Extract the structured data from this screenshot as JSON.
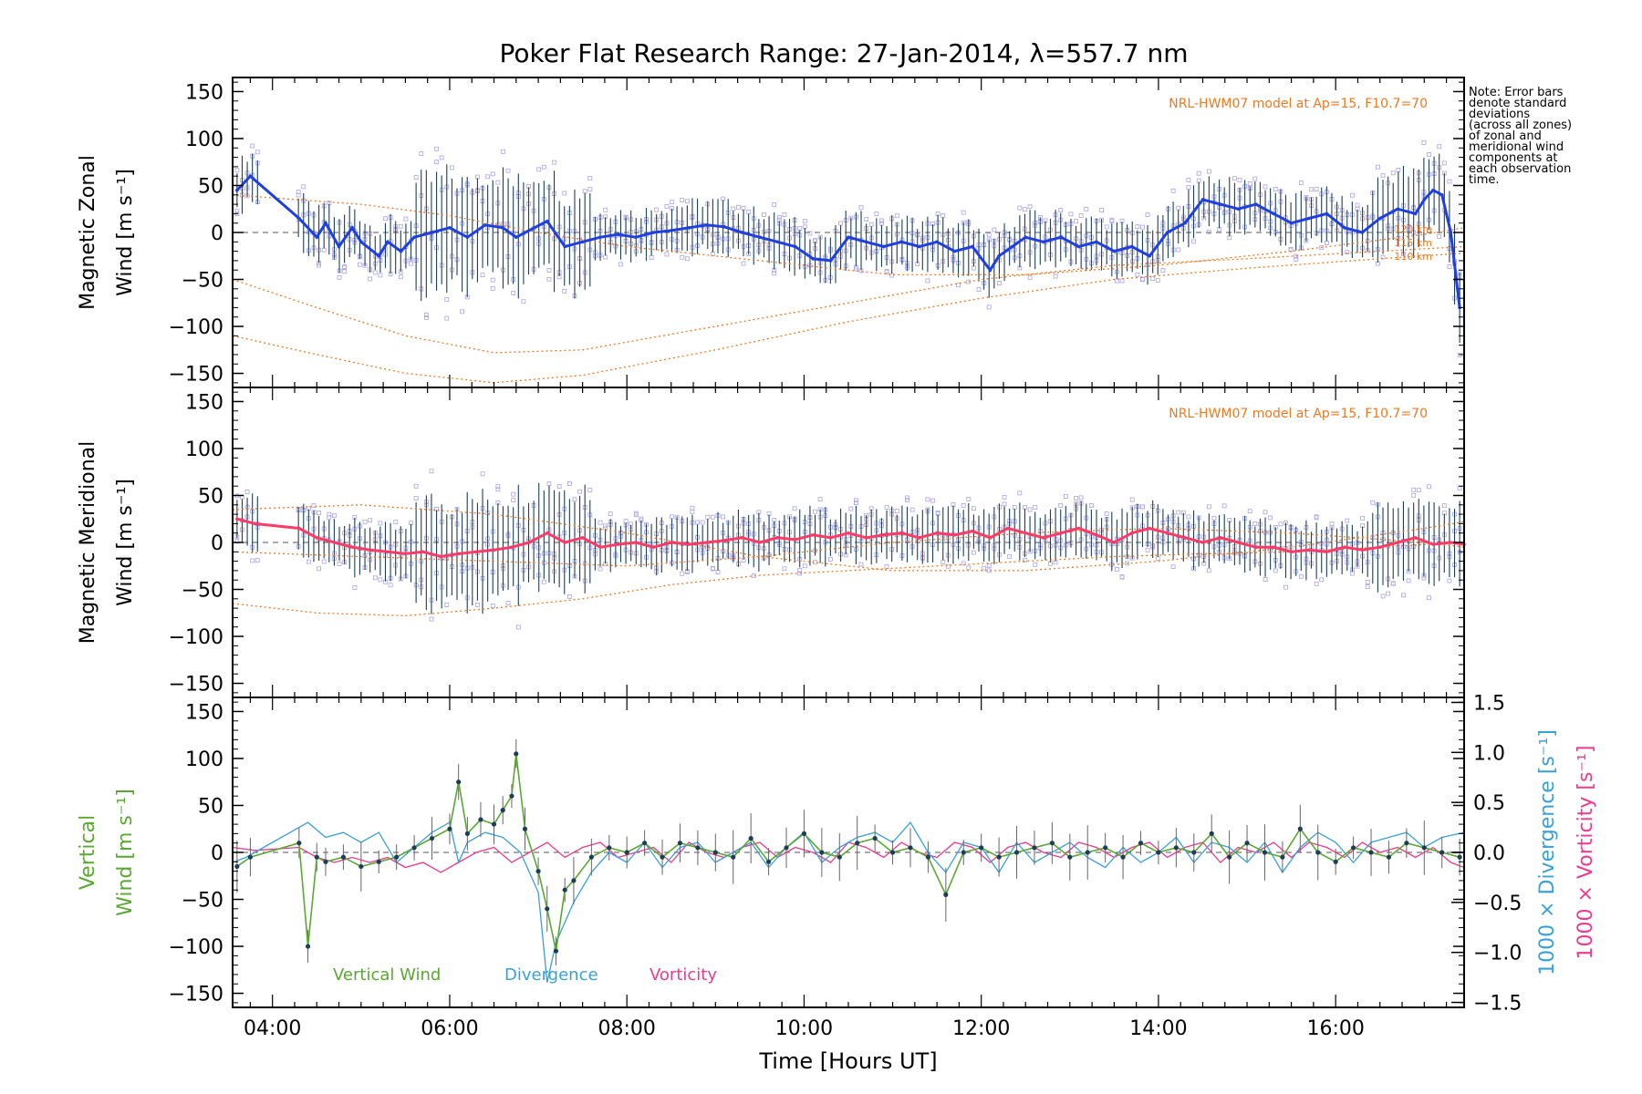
{
  "figure": {
    "title": "Poker Flat Research Range: 27-Jan-2014, λ=557.7 nm",
    "note": "Note: Error bars\ndenote standard\ndeviations\n(across all zones)\nof zonal and\nmeridional wind\ncomponents at\neach observation\ntime.",
    "model_label": "NRL-HWM07 model at Ap=15, F10.7=70",
    "xlabel": "Time [Hours UT]",
    "colors": {
      "zonal_mean": "#1f3fe0",
      "meridional_mean": "#ff3a66",
      "vertical": "#5aa832",
      "divergence": "#3aa0d8",
      "vorticity": "#ee3a8c",
      "model": "#f07820",
      "scatter": "#a9a3e6",
      "errorbar": "#1c3f57"
    }
  },
  "chart_data": [
    {
      "type": "line",
      "panel": "zonal",
      "ylabel_lines": [
        "Magnetic Zonal",
        "Wind [m s⁻¹]"
      ],
      "xlim": [
        3.55,
        17.45
      ],
      "ylim": [
        -165,
        165
      ],
      "yticks": [
        150,
        100,
        50,
        0,
        -50,
        -100,
        -150
      ],
      "xtick_values": [
        4,
        6,
        8,
        10,
        12,
        14,
        16
      ],
      "xtick_labels": [
        "04:00",
        "06:00",
        "08:00",
        "10:00",
        "12:00",
        "14:00",
        "16:00"
      ],
      "model_curves": [
        {
          "name": "model-upper",
          "x": [
            3.55,
            5.0,
            6.0,
            7.0,
            8.0,
            9.5,
            11.0,
            12.5,
            14.0,
            15.5,
            17.0,
            17.45
          ],
          "y": [
            40,
            30,
            18,
            0,
            -15,
            -30,
            -45,
            -45,
            -35,
            -20,
            -2,
            5
          ]
        },
        {
          "name": "model-mid",
          "x": [
            3.55,
            4.5,
            5.5,
            6.5,
            7.5,
            9.0,
            10.5,
            12.0,
            13.5,
            15.0,
            16.5,
            17.45
          ],
          "y": [
            -50,
            -80,
            -110,
            -128,
            -125,
            -100,
            -75,
            -50,
            -35,
            -28,
            -20,
            -15
          ]
        },
        {
          "name": "model-lower",
          "x": [
            3.55,
            4.5,
            5.5,
            6.5,
            7.5,
            9.0,
            10.5,
            12.0,
            13.5,
            15.0,
            16.5,
            17.45
          ],
          "y": [
            -110,
            -130,
            -150,
            -160,
            -152,
            -125,
            -95,
            -70,
            -50,
            -38,
            -28,
            -22
          ]
        }
      ],
      "model_level_labels": [
        "120 km",
        "115 km",
        "110 km"
      ],
      "series": [
        {
          "name": "zonal-mean",
          "x": [
            3.6,
            3.75,
            4.3,
            4.5,
            4.6,
            4.75,
            4.9,
            5.0,
            5.2,
            5.3,
            5.45,
            5.6,
            5.8,
            6.0,
            6.2,
            6.4,
            6.6,
            6.75,
            7.1,
            7.3,
            7.5,
            7.7,
            7.9,
            8.1,
            8.3,
            8.5,
            8.7,
            8.9,
            9.1,
            9.3,
            9.5,
            9.7,
            9.9,
            10.1,
            10.3,
            10.5,
            10.7,
            10.9,
            11.1,
            11.3,
            11.5,
            11.7,
            11.9,
            12.1,
            12.2,
            12.35,
            12.5,
            12.7,
            12.9,
            13.1,
            13.3,
            13.5,
            13.7,
            13.9,
            14.1,
            14.3,
            14.5,
            14.7,
            14.9,
            15.1,
            15.3,
            15.5,
            15.7,
            15.9,
            16.1,
            16.3,
            16.5,
            16.7,
            16.9,
            17.0,
            17.1,
            17.2,
            17.3,
            17.4
          ],
          "y": [
            45,
            60,
            15,
            -5,
            10,
            -15,
            5,
            -10,
            -25,
            -10,
            -20,
            -5,
            0,
            5,
            -5,
            8,
            5,
            -5,
            12,
            -15,
            -10,
            -5,
            -2,
            -5,
            0,
            2,
            5,
            8,
            6,
            0,
            -5,
            -10,
            -15,
            -28,
            -30,
            -5,
            -10,
            -15,
            -10,
            -15,
            -10,
            -20,
            -15,
            -40,
            -25,
            -15,
            -5,
            -10,
            -5,
            -15,
            -10,
            -20,
            -15,
            -25,
            0,
            10,
            35,
            30,
            25,
            30,
            20,
            10,
            15,
            20,
            5,
            0,
            15,
            25,
            20,
            35,
            45,
            40,
            0,
            -80
          ]
        }
      ]
    },
    {
      "type": "line",
      "panel": "meridional",
      "ylabel_lines": [
        "Magnetic Meridional",
        "Wind [m s⁻¹]"
      ],
      "xlim": [
        3.55,
        17.45
      ],
      "ylim": [
        -165,
        165
      ],
      "yticks": [
        150,
        100,
        50,
        0,
        -50,
        -100,
        -150
      ],
      "model_curves": [
        {
          "name": "model-upper",
          "x": [
            3.55,
            5.0,
            6.5,
            8.0,
            9.5,
            11.0,
            12.5,
            14.0,
            15.5,
            17.0,
            17.45
          ],
          "y": [
            35,
            40,
            30,
            10,
            -15,
            -30,
            -30,
            -20,
            -5,
            15,
            22
          ]
        },
        {
          "name": "model-mid",
          "x": [
            3.55,
            5.0,
            6.5,
            8.0,
            9.5,
            11.0,
            12.5,
            14.0,
            15.5,
            17.0,
            17.45
          ],
          "y": [
            -10,
            -15,
            -20,
            -25,
            -15,
            0,
            10,
            15,
            10,
            0,
            -5
          ]
        },
        {
          "name": "model-lower",
          "x": [
            3.55,
            4.5,
            5.5,
            6.5,
            7.5,
            8.5,
            9.5,
            10.5,
            11.5,
            12.5,
            13.5,
            14.5,
            15.5,
            16.5,
            17.45
          ],
          "y": [
            -65,
            -75,
            -78,
            -70,
            -60,
            -45,
            -35,
            -30,
            -25,
            -20,
            -15,
            -12,
            -10,
            -5,
            0
          ]
        }
      ],
      "series": [
        {
          "name": "meridional-mean",
          "x": [
            3.6,
            3.8,
            4.3,
            4.5,
            4.7,
            4.9,
            5.1,
            5.3,
            5.5,
            5.7,
            5.9,
            6.1,
            6.3,
            6.5,
            6.7,
            6.9,
            7.1,
            7.3,
            7.5,
            7.7,
            7.9,
            8.1,
            8.3,
            8.5,
            8.7,
            8.9,
            9.1,
            9.3,
            9.5,
            9.7,
            9.9,
            10.1,
            10.3,
            10.5,
            10.7,
            10.9,
            11.1,
            11.3,
            11.5,
            11.7,
            11.9,
            12.1,
            12.3,
            12.5,
            12.7,
            12.9,
            13.1,
            13.3,
            13.5,
            13.7,
            13.9,
            14.1,
            14.3,
            14.5,
            14.7,
            14.9,
            15.1,
            15.3,
            15.5,
            15.7,
            15.9,
            16.1,
            16.3,
            16.5,
            16.7,
            16.9,
            17.1,
            17.3,
            17.45
          ],
          "y": [
            25,
            20,
            15,
            5,
            0,
            -5,
            -8,
            -10,
            -12,
            -10,
            -15,
            -12,
            -10,
            -8,
            -5,
            0,
            10,
            0,
            5,
            -5,
            -2,
            0,
            -5,
            0,
            -2,
            0,
            2,
            5,
            0,
            5,
            3,
            8,
            5,
            10,
            5,
            8,
            10,
            5,
            10,
            8,
            12,
            5,
            15,
            10,
            5,
            10,
            15,
            8,
            0,
            10,
            15,
            10,
            5,
            0,
            5,
            0,
            -5,
            -5,
            -10,
            -8,
            -10,
            -5,
            -8,
            -5,
            0,
            5,
            -2,
            0,
            -2
          ]
        }
      ]
    },
    {
      "type": "line",
      "panel": "vertical",
      "ylabel_lines": [
        "Vertical",
        "Wind [m s⁻¹]"
      ],
      "y2label_divergence": "1000 × Divergence [s⁻¹]",
      "y2label_vorticity": "1000 × Vorticity [s⁻¹]",
      "xlim": [
        3.55,
        17.45
      ],
      "ylim": [
        -165,
        165
      ],
      "yticks": [
        150,
        100,
        50,
        0,
        -50,
        -100,
        -150
      ],
      "y2lim": [
        -1.55,
        1.55
      ],
      "y2ticks": [
        1.5,
        1.0,
        0.5,
        0.0,
        -0.5,
        -1.0,
        -1.5
      ],
      "y2tick_labels": [
        "1.5",
        "1.0",
        "0.5",
        "0.0",
        "−0.5",
        "−1.0",
        "−1.5"
      ],
      "legend": [
        "Vertical Wind",
        "Divergence",
        "Vorticity"
      ],
      "series": [
        {
          "name": "Vertical Wind",
          "axis": "left",
          "x": [
            3.6,
            3.75,
            4.3,
            4.4,
            4.5,
            4.6,
            4.8,
            5.0,
            5.2,
            5.4,
            5.6,
            5.8,
            6.0,
            6.1,
            6.2,
            6.35,
            6.5,
            6.6,
            6.7,
            6.75,
            6.85,
            7.0,
            7.1,
            7.2,
            7.3,
            7.4,
            7.6,
            7.8,
            8.0,
            8.2,
            8.4,
            8.6,
            8.8,
            9.0,
            9.2,
            9.4,
            9.6,
            9.8,
            10.0,
            10.2,
            10.4,
            10.6,
            10.8,
            11.0,
            11.2,
            11.4,
            11.6,
            11.8,
            12.0,
            12.2,
            12.4,
            12.6,
            12.8,
            13.0,
            13.2,
            13.4,
            13.6,
            13.8,
            14.0,
            14.2,
            14.4,
            14.6,
            14.8,
            15.0,
            15.2,
            15.4,
            15.6,
            15.8,
            16.0,
            16.2,
            16.4,
            16.6,
            16.8,
            17.0,
            17.2,
            17.4
          ],
          "y": [
            -15,
            -5,
            10,
            -100,
            -5,
            -10,
            -5,
            -15,
            -10,
            -5,
            5,
            15,
            25,
            75,
            20,
            35,
            30,
            45,
            60,
            105,
            25,
            -20,
            -60,
            -105,
            -40,
            -30,
            -5,
            5,
            0,
            10,
            -5,
            10,
            5,
            0,
            -5,
            15,
            -10,
            5,
            20,
            0,
            -5,
            10,
            15,
            0,
            5,
            -5,
            -45,
            0,
            5,
            -5,
            0,
            5,
            10,
            -5,
            0,
            5,
            -5,
            10,
            0,
            5,
            0,
            20,
            -5,
            10,
            0,
            -5,
            25,
            0,
            -10,
            5,
            0,
            -5,
            10,
            5,
            0,
            -5
          ]
        },
        {
          "name": "Divergence",
          "axis": "right",
          "x": [
            3.55,
            3.7,
            4.0,
            4.2,
            4.4,
            4.6,
            4.8,
            5.0,
            5.2,
            5.4,
            5.6,
            5.8,
            6.0,
            6.1,
            6.2,
            6.4,
            6.6,
            6.8,
            7.0,
            7.1,
            7.2,
            7.4,
            7.6,
            7.8,
            8.0,
            8.2,
            8.4,
            8.6,
            8.8,
            9.0,
            9.2,
            9.4,
            9.6,
            9.8,
            10.0,
            10.2,
            10.4,
            10.6,
            10.8,
            11.0,
            11.2,
            11.4,
            11.6,
            11.8,
            12.0,
            12.2,
            12.4,
            12.6,
            12.8,
            13.0,
            13.2,
            13.4,
            13.6,
            13.8,
            14.0,
            14.2,
            14.4,
            14.6,
            14.8,
            15.0,
            15.2,
            15.4,
            15.6,
            15.8,
            16.0,
            16.2,
            16.4,
            16.6,
            16.8,
            17.0,
            17.2,
            17.45
          ],
          "y": [
            -0.1,
            -0.05,
            0.1,
            0.2,
            0.3,
            0.15,
            0.2,
            0.1,
            0.2,
            -0.1,
            0.05,
            0.2,
            0.3,
            -0.1,
            0.1,
            0.2,
            0.15,
            0.0,
            -0.4,
            -1.3,
            -0.9,
            -0.5,
            -0.2,
            0.0,
            -0.1,
            0.1,
            -0.15,
            0.05,
            0.1,
            -0.1,
            0.0,
            0.1,
            -0.15,
            0.05,
            0.2,
            -0.1,
            0.05,
            0.15,
            0.2,
            0.1,
            0.3,
            0.0,
            -0.2,
            0.1,
            0.05,
            -0.2,
            0.1,
            -0.1,
            0.0,
            0.1,
            -0.05,
            -0.15,
            0.05,
            -0.1,
            0.0,
            0.15,
            -0.1,
            0.1,
            0.05,
            -0.1,
            0.1,
            -0.2,
            0.05,
            0.2,
            0.1,
            -0.1,
            0.1,
            0.15,
            0.2,
            0.05,
            0.15,
            0.2
          ]
        },
        {
          "name": "Vorticity",
          "axis": "right",
          "x": [
            3.55,
            3.8,
            4.3,
            4.5,
            4.7,
            4.9,
            5.1,
            5.3,
            5.5,
            5.7,
            5.9,
            6.1,
            6.3,
            6.5,
            6.7,
            6.9,
            7.1,
            7.3,
            7.5,
            7.7,
            7.9,
            8.1,
            8.3,
            8.5,
            8.7,
            8.9,
            9.1,
            9.3,
            9.5,
            9.7,
            9.9,
            10.1,
            10.3,
            10.5,
            10.7,
            10.9,
            11.1,
            11.3,
            11.5,
            11.7,
            11.9,
            12.1,
            12.3,
            12.5,
            12.7,
            12.9,
            13.1,
            13.3,
            13.5,
            13.7,
            13.9,
            14.1,
            14.3,
            14.5,
            14.7,
            14.9,
            15.1,
            15.3,
            15.5,
            15.7,
            15.9,
            16.1,
            16.3,
            16.5,
            16.7,
            16.9,
            17.1,
            17.3,
            17.45
          ],
          "y": [
            0.05,
            0.02,
            0.05,
            -0.05,
            -0.1,
            -0.05,
            -0.1,
            -0.05,
            -0.15,
            -0.1,
            -0.2,
            -0.1,
            0.0,
            0.05,
            -0.1,
            0.0,
            0.1,
            -0.05,
            0.05,
            0.1,
            -0.05,
            0.0,
            0.05,
            -0.1,
            0.1,
            0.0,
            -0.05,
            0.05,
            0.1,
            -0.05,
            0.05,
            0.0,
            -0.1,
            0.1,
            0.05,
            -0.05,
            0.1,
            0.0,
            -0.05,
            0.1,
            0.05,
            -0.1,
            0.05,
            0.1,
            0.0,
            -0.05,
            0.1,
            0.05,
            -0.05,
            0.05,
            0.1,
            -0.05,
            0.05,
            0.1,
            -0.1,
            0.05,
            0.0,
            0.1,
            -0.05,
            0.1,
            0.05,
            -0.05,
            0.1,
            0.0,
            0.05,
            -0.05,
            0.05,
            -0.1,
            -0.15
          ]
        }
      ]
    }
  ]
}
